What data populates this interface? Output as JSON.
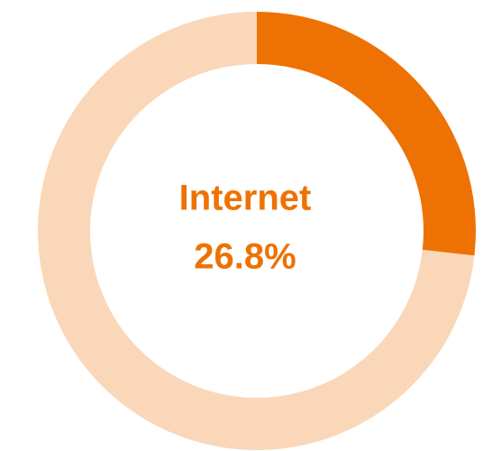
{
  "chart_data": {
    "type": "donut",
    "categories": [
      "Internet",
      null
    ],
    "values": [
      26.8,
      73.2
    ],
    "value_labels": [
      "26.8%",
      null
    ],
    "colors": [
      "#ee7203",
      "#fad7b9"
    ]
  }
}
